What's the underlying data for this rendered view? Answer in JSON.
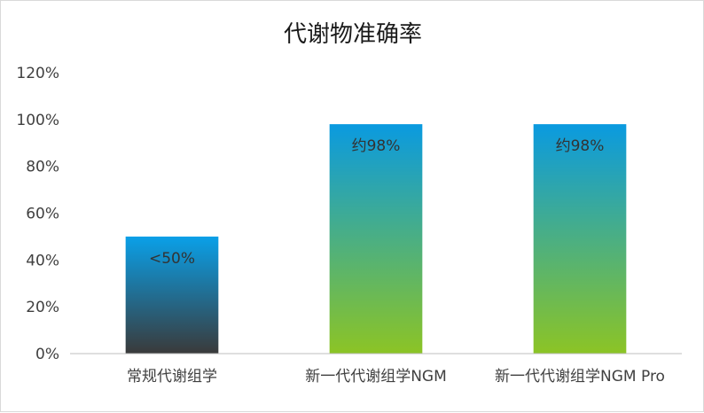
{
  "chart_data": {
    "type": "bar",
    "title": "代谢物准确率",
    "xlabel": "",
    "ylabel": "",
    "ylim": [
      0,
      1.2
    ],
    "y_ticks": [
      0,
      0.2,
      0.4,
      0.6,
      0.8,
      1.0,
      1.2
    ],
    "y_tick_labels": [
      "0%",
      "20%",
      "40%",
      "60%",
      "80%",
      "100%",
      "120%"
    ],
    "categories": [
      "常规代谢组学",
      "新一代代谢组学NGM",
      "新一代代谢组学NGM Pro"
    ],
    "values": [
      0.5,
      0.98,
      0.98
    ],
    "data_labels": [
      "<50%",
      "约98%",
      "约98%"
    ],
    "grid": false,
    "legend": "none",
    "bar_gradients": [
      {
        "top": "#0aa0e8",
        "bottom": "#3a3a3a"
      },
      {
        "top": "#0a9ae0",
        "bottom": "#8cc425"
      },
      {
        "top": "#0a9ae0",
        "bottom": "#8cc425"
      }
    ],
    "axis_color": "#bfbfbf"
  }
}
